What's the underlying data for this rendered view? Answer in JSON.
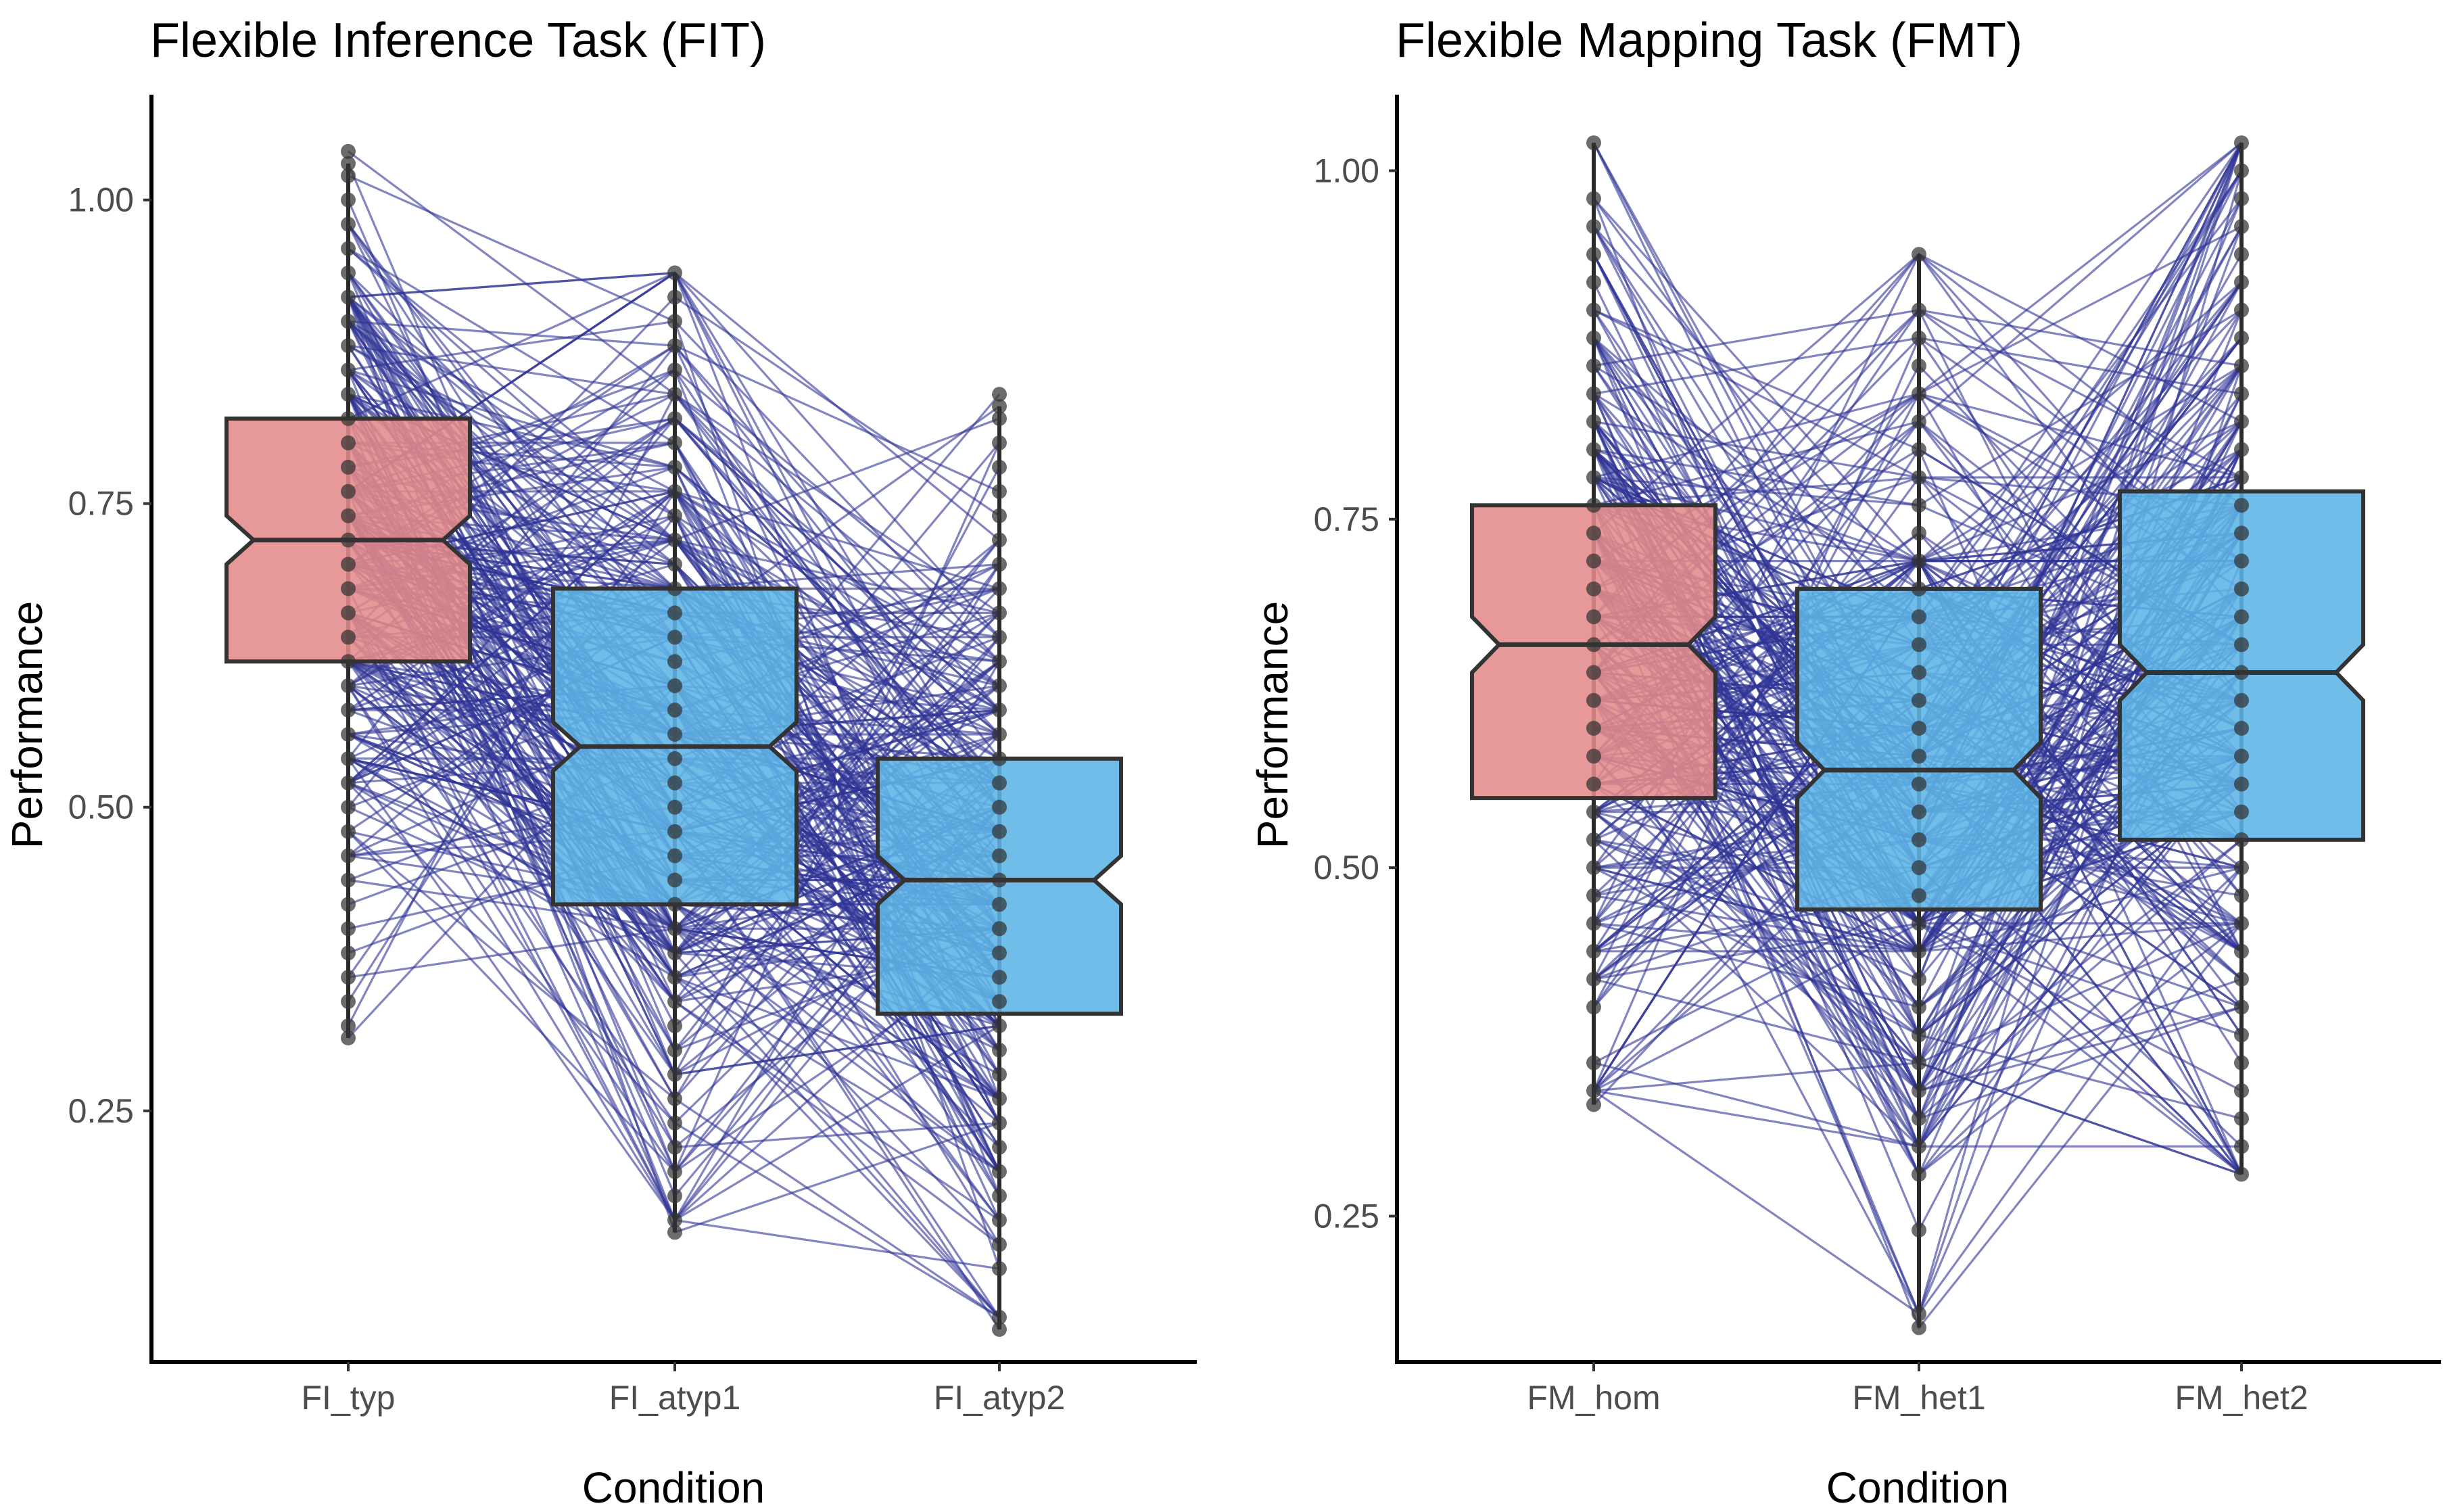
{
  "chart_data": [
    {
      "type": "boxplot-with-paired-lines",
      "title": "Flexible Inference Task (FIT)",
      "xlabel": "Condition",
      "ylabel": "Performance",
      "ylim": [
        0.06,
        1.07
      ],
      "yticks": [
        0.25,
        0.5,
        0.75,
        1.0
      ],
      "ytick_labels": [
        "0.25",
        "0.50",
        "0.75",
        "1.00"
      ],
      "categories": [
        "FI_typ",
        "FI_atyp1",
        "FI_atyp2"
      ],
      "box_colors": [
        "#e48a8a",
        "#5db4e6"
      ],
      "line_color": "#2f3395",
      "boxes": [
        {
          "category": "FI_typ",
          "whisker_low": 0.31,
          "q1": 0.62,
          "median": 0.72,
          "q3": 0.82,
          "whisker_high": 1.03,
          "notch_low": 0.7,
          "notch_high": 0.74,
          "color": "#e48a8a"
        },
        {
          "category": "FI_atyp1",
          "whisker_low": 0.15,
          "q1": 0.42,
          "median": 0.55,
          "q3": 0.68,
          "whisker_high": 0.94,
          "notch_low": 0.53,
          "notch_high": 0.57,
          "color": "#5db4e6"
        },
        {
          "category": "FI_atyp2",
          "whisker_low": 0.07,
          "q1": 0.33,
          "median": 0.44,
          "q3": 0.54,
          "whisker_high": 0.83,
          "notch_low": 0.42,
          "notch_high": 0.46,
          "color": "#5db4e6"
        }
      ]
    },
    {
      "type": "boxplot-with-paired-lines",
      "title": "Flexible Mapping Task (FMT)",
      "xlabel": "Condition",
      "ylabel": "Performance",
      "ylim": [
        0.16,
        1.04
      ],
      "yticks": [
        0.25,
        0.5,
        0.75,
        1.0
      ],
      "ytick_labels": [
        "0.25",
        "0.50",
        "0.75",
        "1.00"
      ],
      "categories": [
        "FM_hom",
        "FM_het1",
        "FM_het2"
      ],
      "box_colors": [
        "#e48a8a",
        "#5db4e6"
      ],
      "line_color": "#2f3395",
      "boxes": [
        {
          "category": "FM_hom",
          "whisker_low": 0.33,
          "q1": 0.55,
          "median": 0.66,
          "q3": 0.76,
          "whisker_high": 1.02,
          "notch_low": 0.64,
          "notch_high": 0.68,
          "color": "#e48a8a"
        },
        {
          "category": "FM_het1",
          "whisker_low": 0.17,
          "q1": 0.47,
          "median": 0.57,
          "q3": 0.7,
          "whisker_high": 0.94,
          "notch_low": 0.55,
          "notch_high": 0.59,
          "color": "#5db4e6"
        },
        {
          "category": "FM_het2",
          "whisker_low": 0.28,
          "q1": 0.52,
          "median": 0.64,
          "q3": 0.77,
          "whisker_high": 1.02,
          "notch_low": 0.62,
          "notch_high": 0.66,
          "color": "#5db4e6"
        }
      ]
    }
  ]
}
